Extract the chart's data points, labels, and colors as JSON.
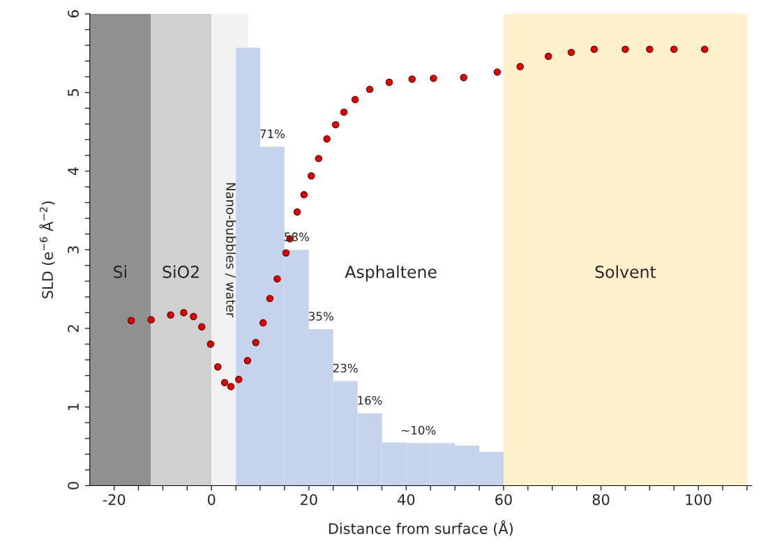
{
  "chart_data": {
    "type": "scatter",
    "xlabel": "Distance from surface (Å)",
    "ylabel": "SLD (e$^{−6}$ Å$^{−2}$)",
    "xlim": [
      -25,
      111
    ],
    "ylim": [
      0,
      6
    ],
    "xticks": [
      {
        "value": -20,
        "label": "-20"
      },
      {
        "value": -15,
        "label": null
      },
      {
        "value": -10,
        "label": null
      },
      {
        "value": -5,
        "label": null
      },
      0,
      {
        "value": 5,
        "label": null
      },
      {
        "value": 10,
        "label": null
      },
      {
        "value": 15,
        "label": null
      },
      20,
      {
        "value": 25,
        "label": null
      },
      {
        "value": 30,
        "label": null
      },
      {
        "value": 35,
        "label": null
      },
      40,
      {
        "value": 45,
        "label": null
      },
      {
        "value": 50,
        "label": null
      },
      {
        "value": 55,
        "label": null
      },
      60,
      {
        "value": 65,
        "label": null
      },
      {
        "value": 70,
        "label": null
      },
      {
        "value": 75,
        "label": null
      },
      80,
      {
        "value": 85,
        "label": null
      },
      {
        "value": 90,
        "label": null
      },
      {
        "value": 95,
        "label": null
      },
      100,
      {
        "value": 105,
        "label": null
      },
      {
        "value": 110,
        "label": null
      }
    ],
    "yticks": [
      0,
      {
        "value": 0.2,
        "label": null
      },
      {
        "value": 0.4,
        "label": null
      },
      {
        "value": 0.6,
        "label": null
      },
      {
        "value": 0.8,
        "label": null
      },
      1,
      {
        "value": 1.2,
        "label": null
      },
      {
        "value": 1.4,
        "label": null
      },
      {
        "value": 1.6,
        "label": null
      },
      {
        "value": 1.8,
        "label": null
      },
      2,
      {
        "value": 2.2,
        "label": null
      },
      {
        "value": 2.4,
        "label": null
      },
      {
        "value": 2.6,
        "label": null
      },
      {
        "value": 2.8,
        "label": null
      },
      3,
      {
        "value": 3.2,
        "label": null
      },
      {
        "value": 3.4,
        "label": null
      },
      {
        "value": 3.6,
        "label": null
      },
      {
        "value": 3.8,
        "label": null
      },
      4,
      {
        "value": 4.2,
        "label": null
      },
      {
        "value": 4.4,
        "label": null
      },
      {
        "value": 4.6,
        "label": null
      },
      {
        "value": 4.8,
        "label": null
      },
      5,
      {
        "value": 5.2,
        "label": null
      },
      {
        "value": 5.4,
        "label": null
      },
      {
        "value": 5.6,
        "label": null
      },
      {
        "value": 5.8,
        "label": null
      },
      6
    ],
    "grid": false,
    "legend": false,
    "marker": "circle",
    "bands": [
      {
        "axis": "x",
        "from": -25,
        "to": -12.5,
        "label": "Si",
        "color": "#909090"
      },
      {
        "axis": "x",
        "from": -12.5,
        "to": 0,
        "label": "SiO2",
        "color": "#d0d0d0"
      },
      {
        "axis": "x",
        "from": 0,
        "to": 7.5,
        "label": "Nano-bubbles / water",
        "color": "#f2f2f2"
      },
      {
        "axis": "x",
        "from": 60,
        "to": 110,
        "label": "Solvent",
        "color": "#fff0cc"
      }
    ],
    "annotations": [
      "Asphaltene",
      {
        "text": "71%",
        "x": 12.5,
        "y": 4.31
      },
      {
        "text": "58%",
        "x": 17.5,
        "y": 3.0
      },
      {
        "text": "35%",
        "x": 22.5,
        "y": 1.99
      },
      {
        "text": "23%",
        "x": 27.5,
        "y": 1.33
      },
      {
        "text": "16%",
        "x": 32.5,
        "y": 0.92
      },
      {
        "text": "~10%",
        "x": 42.5,
        "y": 0.54
      }
    ],
    "series": [
      {
        "type": "bar",
        "color": "#c5d3ec",
        "x": [
          7.5,
          12.5,
          17.5,
          22.5,
          27.5,
          32.5,
          37.5,
          42.5,
          47.5,
          52.5,
          57.5
        ],
        "values": [
          5.57,
          4.31,
          3.0,
          1.99,
          1.33,
          0.92,
          0.55,
          0.54,
          0.54,
          0.51,
          0.43
        ]
      },
      {
        "color": "#e00000",
        "x": [
          -16.5,
          -12.4,
          -8.4,
          -5.7,
          -3.7,
          -2.0,
          -0.2,
          1.3,
          2.7,
          4.0,
          5.6,
          7.4,
          9.1,
          10.6,
          12.0,
          13.5,
          15.3,
          16.1,
          17.6,
          19.0,
          20.5,
          22.0,
          23.7,
          25.5,
          27.2,
          29.5,
          32.5,
          36.5,
          41.2,
          45.6,
          51.8,
          58.7,
          63.4,
          69.2,
          73.9,
          78.6,
          85,
          90,
          95,
          101.3
        ],
        "values": [
          2.1,
          2.11,
          2.17,
          2.2,
          2.15,
          2.02,
          1.8,
          1.51,
          1.31,
          1.26,
          1.35,
          1.59,
          1.82,
          2.07,
          2.38,
          2.63,
          2.96,
          3.14,
          3.48,
          3.7,
          3.94,
          4.16,
          4.41,
          4.59,
          4.75,
          4.91,
          5.04,
          5.13,
          5.17,
          5.18,
          5.19,
          5.26,
          5.33,
          5.46,
          5.51,
          5.55,
          5.55,
          5.55,
          5.55,
          5.55
        ]
      }
    ]
  }
}
